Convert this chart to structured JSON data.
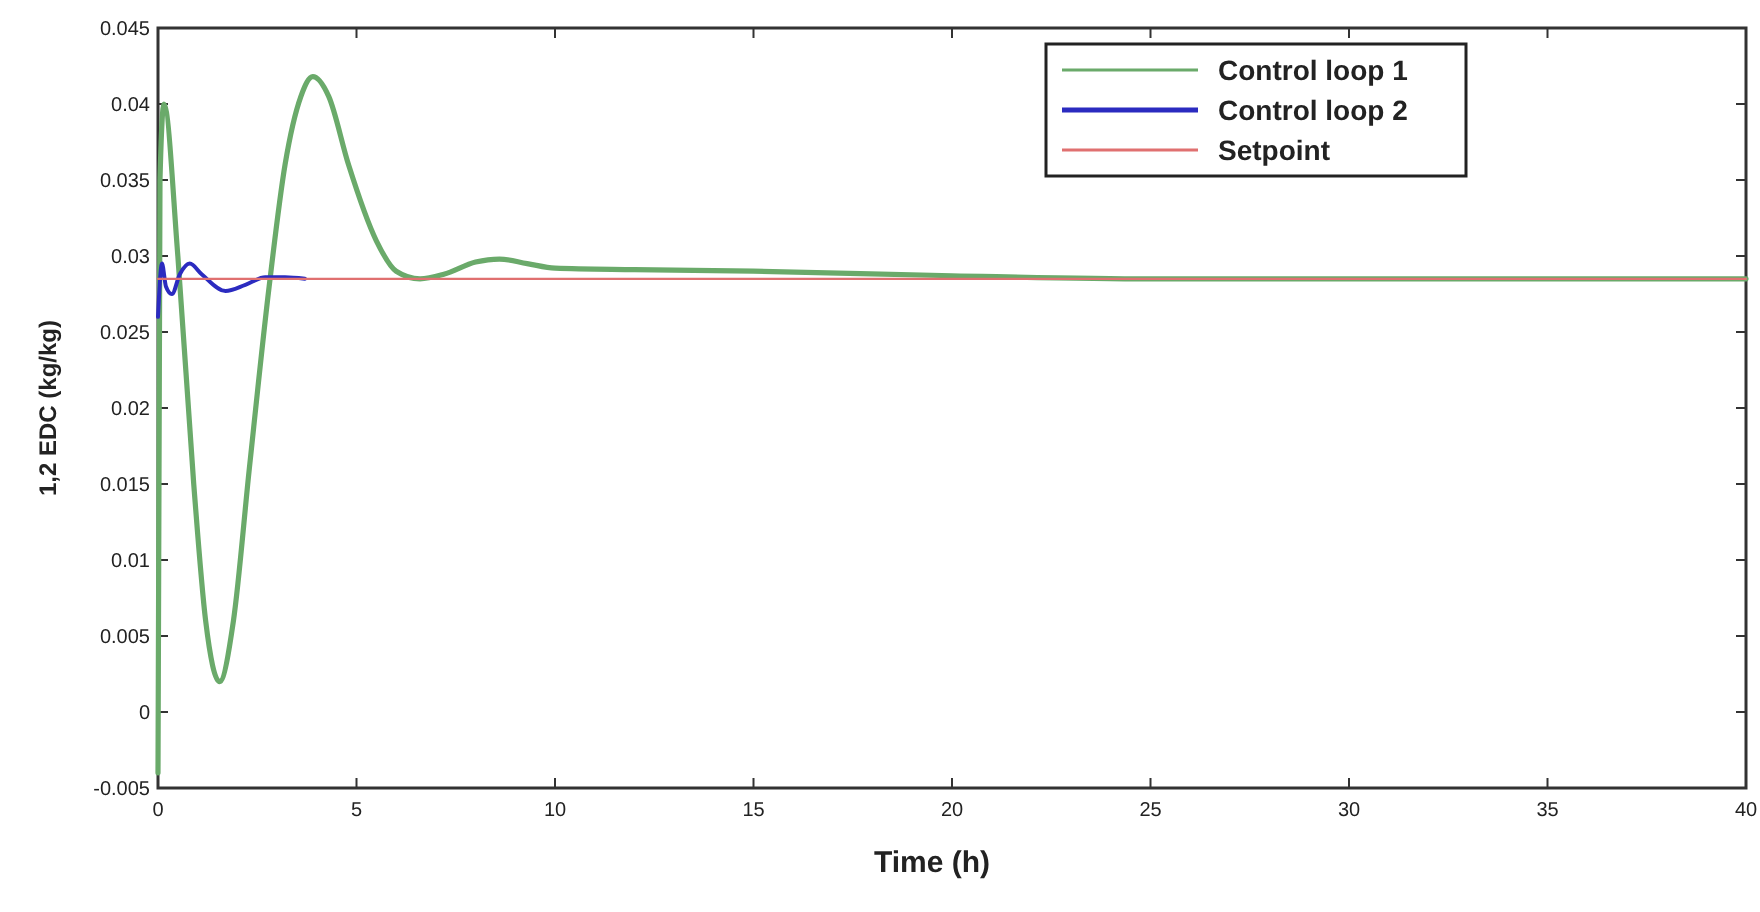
{
  "chart_data": {
    "type": "line",
    "xlabel": "Time (h)",
    "ylabel": "1,2 EDC (kg/kg)",
    "xlim": [
      0,
      40
    ],
    "xticks": [
      0,
      5,
      10,
      15,
      20,
      25,
      30,
      35,
      40
    ],
    "ylim": [
      -0.005,
      0.045
    ],
    "yticks": [
      -0.005,
      0,
      0.005,
      0.01,
      0.015,
      0.02,
      0.025,
      0.03,
      0.035,
      0.04,
      0.045
    ],
    "grid": false,
    "legend": "top right",
    "series": [
      {
        "name": "Control loop 1",
        "color": "#6aaa6a",
        "x": [
          0,
          0.05,
          0.15,
          0.5,
          0.9,
          1.2,
          1.55,
          1.9,
          2.3,
          2.8,
          3.2,
          3.6,
          3.9,
          4.3,
          4.8,
          5.5,
          6.0,
          6.6,
          7.2,
          8.0,
          8.6,
          9.3,
          10,
          12,
          15,
          20,
          25,
          40
        ],
        "values": [
          -0.004,
          0.035,
          0.04,
          0.03,
          0.015,
          0.006,
          0.002,
          0.006,
          0.016,
          0.028,
          0.036,
          0.0405,
          0.0418,
          0.0405,
          0.036,
          0.031,
          0.029,
          0.0285,
          0.0288,
          0.0296,
          0.0298,
          0.0295,
          0.0292,
          0.0291,
          0.029,
          0.0287,
          0.0285,
          0.0285
        ]
      },
      {
        "name": "Control loop 2",
        "color": "#2b2bc0",
        "x": [
          0,
          0.1,
          0.2,
          0.35,
          0.55,
          0.8,
          1.1,
          1.7,
          2.2,
          2.7,
          3.2,
          3.7
        ],
        "values": [
          0.026,
          0.0295,
          0.028,
          0.0275,
          0.0288,
          0.0295,
          0.0288,
          0.0277,
          0.0281,
          0.0286,
          0.0286,
          0.0285
        ]
      },
      {
        "name": "Setpoint",
        "color": "#e07070",
        "x": [
          0,
          40
        ],
        "values": [
          0.0285,
          0.0285
        ]
      }
    ]
  }
}
